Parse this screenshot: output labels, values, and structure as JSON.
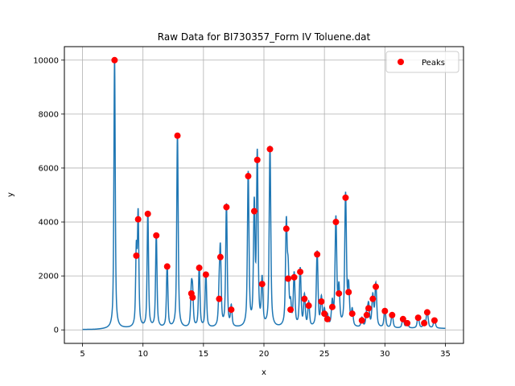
{
  "chart_data": {
    "type": "line",
    "title": "Raw Data for BI730357_Form IV Toluene.dat",
    "xlabel": "x",
    "ylabel": "y",
    "xlim": [
      3.5,
      36.5
    ],
    "ylim": [
      -500,
      10500
    ],
    "xticks": [
      5,
      10,
      15,
      20,
      25,
      30,
      35
    ],
    "yticks": [
      0,
      2000,
      4000,
      6000,
      8000,
      10000
    ],
    "grid": true,
    "legend": {
      "position": "top-right",
      "entries": [
        {
          "label": "Peaks",
          "marker": "circle",
          "color": "#ff0000"
        }
      ]
    },
    "x_range": [
      5,
      35
    ],
    "series": [
      {
        "name": "",
        "kind": "line",
        "color": "#1f77b4",
        "description_points": "continuous pattern through peak list"
      },
      {
        "name": "Peaks",
        "kind": "markers",
        "color": "#ff0000",
        "x": [
          7.65,
          9.45,
          9.6,
          10.4,
          11.1,
          12.0,
          12.85,
          14.0,
          14.1,
          14.65,
          15.2,
          16.3,
          16.4,
          16.9,
          17.3,
          18.7,
          19.2,
          19.45,
          19.85,
          20.5,
          21.85,
          22.0,
          22.2,
          22.5,
          23.0,
          23.35,
          23.7,
          24.4,
          24.75,
          25.0,
          25.25,
          25.65,
          25.95,
          26.2,
          26.75,
          27.0,
          27.3,
          28.1,
          28.5,
          28.65,
          29.0,
          29.25,
          30.0,
          30.6,
          31.5,
          31.85,
          32.75,
          33.25,
          33.5,
          34.1
        ],
        "y": [
          10000,
          2750,
          4100,
          4300,
          3500,
          2350,
          7200,
          1350,
          1200,
          2300,
          2050,
          1150,
          2700,
          4550,
          750,
          5700,
          4400,
          6300,
          1700,
          6700,
          3750,
          1900,
          750,
          1950,
          2150,
          1150,
          900,
          2800,
          1050,
          600,
          400,
          850,
          4000,
          1350,
          4900,
          1400,
          600,
          350,
          550,
          800,
          1150,
          1600,
          700,
          550,
          400,
          250,
          450,
          250,
          650,
          350
        ]
      }
    ]
  }
}
